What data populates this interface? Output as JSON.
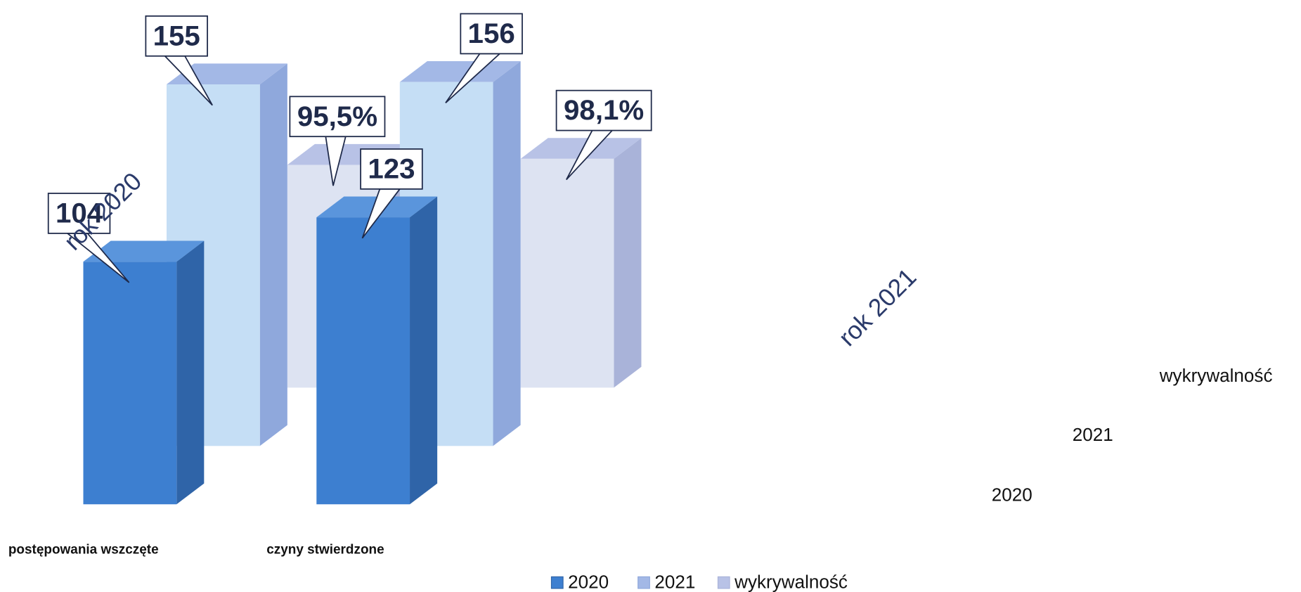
{
  "chart_data": {
    "type": "bar",
    "categories": [
      "postępowania wszczęte",
      "czyny stwierdzone"
    ],
    "series": [
      {
        "name": "2020",
        "color": "#3d7fd0",
        "values": [
          104,
          123
        ]
      },
      {
        "name": "2021",
        "color": "#c5def5",
        "values": [
          155,
          156
        ]
      },
      {
        "name": "wykrywalność",
        "color": "#dde3f2",
        "values": [
          95.5,
          98.1
        ],
        "value_labels": [
          "95,5%",
          "98,1%"
        ]
      }
    ],
    "annotations": [
      "rok 2020",
      "rok 2021"
    ],
    "legend": "bottom"
  }
}
